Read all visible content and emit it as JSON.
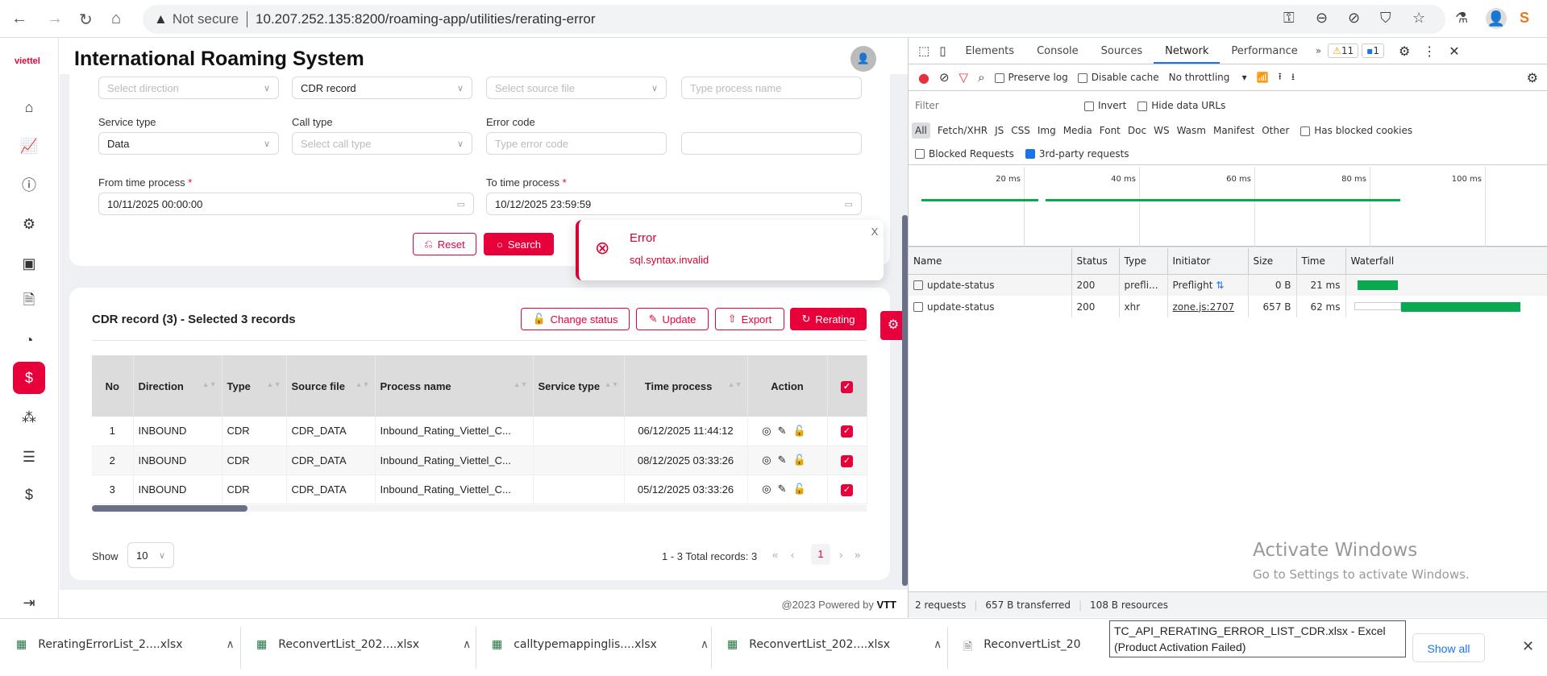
{
  "browser": {
    "security": "Not secure",
    "url": "10.207.252.135:8200/roaming-app/utilities/rerating-error"
  },
  "app": {
    "logo": "viettel",
    "title": "International Roaming System",
    "filters": {
      "direction_placeholder": "Select direction",
      "record_type": "CDR record",
      "source_file_placeholder": "Select source file",
      "process_name_placeholder": "Type process name",
      "service_type_label": "Service type",
      "service_type_value": "Data",
      "call_type_label": "Call type",
      "call_type_placeholder": "Select call type",
      "error_code_label": "Error code",
      "error_code_placeholder": "Type error code",
      "from_label": "From time process",
      "from_value": "10/11/2025 00:00:00",
      "to_label": "To time process",
      "to_value": "10/12/2025 23:59:59",
      "required_mark": "*",
      "reset": "Reset",
      "search": "Search"
    },
    "toast": {
      "title": "Error",
      "message": "sql.syntax.invalid",
      "close": "X"
    },
    "records": {
      "title": "CDR record (3) - Selected 3 records",
      "buttons": {
        "change_status": "Change status",
        "update": "Update",
        "export": "Export",
        "rerating": "Rerating"
      },
      "columns": [
        "No",
        "Direction",
        "Type",
        "Source file",
        "Process name",
        "Service type",
        "Time process",
        "Action"
      ],
      "rows": [
        {
          "no": "1",
          "direction": "INBOUND",
          "type": "CDR",
          "source": "CDR_DATA",
          "process": "Inbound_Rating_Viettel_C...",
          "service": "",
          "time": "06/12/2025 11:44:12",
          "checked": true
        },
        {
          "no": "2",
          "direction": "INBOUND",
          "type": "CDR",
          "source": "CDR_DATA",
          "process": "Inbound_Rating_Viettel_C...",
          "service": "",
          "time": "08/12/2025 03:33:26",
          "checked": true
        },
        {
          "no": "3",
          "direction": "INBOUND",
          "type": "CDR",
          "source": "CDR_DATA",
          "process": "Inbound_Rating_Viettel_C...",
          "service": "",
          "time": "05/12/2025 03:33:26",
          "checked": true
        }
      ],
      "show_label": "Show",
      "page_size": "10",
      "total": "1 - 3 Total records: 3",
      "current_page": "1"
    },
    "footer": {
      "text": "@2023 Powered by ",
      "brand": "VTT"
    }
  },
  "devtools": {
    "tabs": [
      "Elements",
      "Console",
      "Sources",
      "Network",
      "Performance"
    ],
    "active_tab": "Network",
    "warnings": "11",
    "messages": "1",
    "preserve_log": "Preserve log",
    "disable_cache": "Disable cache",
    "throttling": "No throttling",
    "filter_placeholder": "Filter",
    "invert": "Invert",
    "hide_data_urls": "Hide data URLs",
    "types": [
      "All",
      "Fetch/XHR",
      "JS",
      "CSS",
      "Img",
      "Media",
      "Font",
      "Doc",
      "WS",
      "Wasm",
      "Manifest",
      "Other"
    ],
    "has_blocked_cookies": "Has blocked cookies",
    "blocked_requests": "Blocked Requests",
    "third_party": "3rd-party requests",
    "timeline_ticks": [
      "20 ms",
      "40 ms",
      "60 ms",
      "80 ms",
      "100 ms"
    ],
    "columns": [
      "Name",
      "Status",
      "Type",
      "Initiator",
      "Size",
      "Time",
      "Waterfall"
    ],
    "requests": [
      {
        "name": "update-status",
        "status": "200",
        "type": "prefli...",
        "initiator": "Preflight",
        "size": "0 B",
        "time": "21 ms"
      },
      {
        "name": "update-status",
        "status": "200",
        "type": "xhr",
        "initiator": "zone.js:2707",
        "size": "657 B",
        "time": "62 ms"
      }
    ],
    "summary": [
      "2 requests",
      "657 B transferred",
      "108 B resources"
    ]
  },
  "watermark": {
    "title": "Activate Windows",
    "subtitle": "Go to Settings to activate Windows."
  },
  "downloads": {
    "items": [
      "ReratingErrorList_2....xlsx",
      "ReconvertList_202....xlsx",
      "calltypemappinglis....xlsx",
      "ReconvertList_202....xlsx",
      "ReconvertList_20"
    ],
    "show_all": "Show all"
  },
  "tooltip": "TC_API_RERATING_ERROR_LIST_CDR.xlsx - Excel (Product Activation Failed)",
  "colors": {
    "accent": "#e8003a",
    "devtools_blue": "#1a73e8",
    "waterfall_green": "#0aa84f"
  }
}
